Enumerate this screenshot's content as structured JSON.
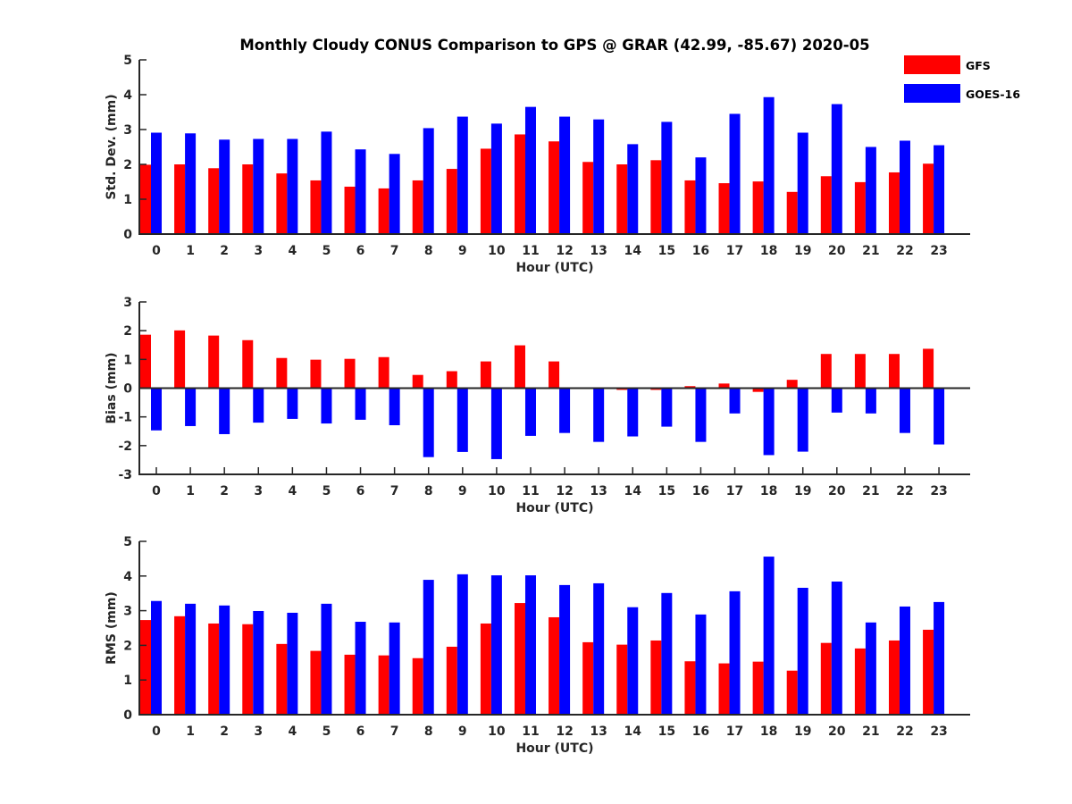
{
  "chart_data": {
    "title": "Monthly Cloudy CONUS Comparison to GPS @ GRAR (42.99, -85.67) 2020-05",
    "legend": {
      "placement": "top-right",
      "entries": [
        {
          "name": "GFS",
          "color": "#ff0000"
        },
        {
          "name": "GOES-16",
          "color": "#0000ff"
        }
      ]
    },
    "panels": [
      {
        "type": "bar",
        "ylabel": "Std. Dev. (mm)",
        "xlabel": "Hour (UTC)",
        "ylim": [
          0,
          5
        ],
        "yticks": [
          "0",
          "1",
          "2",
          "3",
          "4",
          "5"
        ],
        "categories": [
          "0",
          "1",
          "2",
          "3",
          "4",
          "5",
          "6",
          "7",
          "8",
          "9",
          "10",
          "11",
          "12",
          "13",
          "14",
          "15",
          "16",
          "17",
          "18",
          "19",
          "20",
          "21",
          "22",
          "23"
        ],
        "series": [
          {
            "name": "GFS",
            "color": "#ff0000",
            "values": [
              1.99,
              2.0,
              1.89,
              2.0,
              1.74,
              1.54,
              1.36,
              1.31,
              1.54,
              1.87,
              2.45,
              2.86,
              2.66,
              2.07,
              2.0,
              2.12,
              1.54,
              1.46,
              1.51,
              1.21,
              1.66,
              1.49,
              1.77,
              2.02
            ]
          },
          {
            "name": "GOES-16",
            "color": "#0000ff",
            "values": [
              2.91,
              2.89,
              2.71,
              2.73,
              2.73,
              2.94,
              2.43,
              2.3,
              3.04,
              3.37,
              3.17,
              3.65,
              3.37,
              3.29,
              2.58,
              3.22,
              2.2,
              3.45,
              3.93,
              2.91,
              3.73,
              2.5,
              2.68,
              2.55
            ]
          }
        ]
      },
      {
        "type": "bar",
        "ylabel": "Bias (mm)",
        "xlabel": "Hour (UTC)",
        "ylim": [
          -3,
          3
        ],
        "yticks": [
          "-3",
          "-2",
          "-1",
          "0",
          "1",
          "2",
          "3"
        ],
        "categories": [
          "0",
          "1",
          "2",
          "3",
          "4",
          "5",
          "6",
          "7",
          "8",
          "9",
          "10",
          "11",
          "12",
          "13",
          "14",
          "15",
          "16",
          "17",
          "18",
          "19",
          "20",
          "21",
          "22",
          "23"
        ],
        "series": [
          {
            "name": "GFS",
            "color": "#ff0000",
            "values": [
              1.86,
              2.01,
              1.83,
              1.67,
              1.05,
              0.99,
              1.02,
              1.08,
              0.46,
              0.59,
              0.93,
              1.49,
              0.93,
              0.01,
              -0.06,
              -0.06,
              0.07,
              0.16,
              -0.13,
              0.29,
              1.19,
              1.19,
              1.19,
              1.37
            ]
          },
          {
            "name": "GOES-16",
            "color": "#0000ff",
            "values": [
              -1.47,
              -1.32,
              -1.6,
              -1.2,
              -1.07,
              -1.23,
              -1.1,
              -1.29,
              -2.4,
              -2.22,
              -2.47,
              -1.66,
              -1.56,
              -1.87,
              -1.68,
              -1.34,
              -1.87,
              -0.88,
              -2.33,
              -2.21,
              -0.85,
              -0.88,
              -1.56,
              -1.96
            ]
          }
        ]
      },
      {
        "type": "bar",
        "ylabel": "RMS (mm)",
        "xlabel": "Hour (UTC)",
        "ylim": [
          0,
          5
        ],
        "yticks": [
          "0",
          "1",
          "2",
          "3",
          "4",
          "5"
        ],
        "categories": [
          "0",
          "1",
          "2",
          "3",
          "4",
          "5",
          "6",
          "7",
          "8",
          "9",
          "10",
          "11",
          "12",
          "13",
          "14",
          "15",
          "16",
          "17",
          "18",
          "19",
          "20",
          "21",
          "22",
          "23"
        ],
        "series": [
          {
            "name": "GFS",
            "color": "#ff0000",
            "values": [
              2.73,
              2.84,
              2.63,
              2.61,
              2.04,
              1.84,
              1.73,
              1.71,
              1.63,
              1.96,
              2.63,
              3.22,
              2.81,
              2.09,
              2.02,
              2.14,
              1.54,
              1.48,
              1.53,
              1.27,
              2.07,
              1.91,
              2.14,
              2.45
            ]
          },
          {
            "name": "GOES-16",
            "color": "#0000ff",
            "values": [
              3.28,
              3.2,
              3.15,
              2.99,
              2.94,
              3.2,
              2.68,
              2.66,
              3.89,
              4.05,
              4.02,
              4.02,
              3.74,
              3.79,
              3.1,
              3.51,
              2.89,
              3.56,
              4.56,
              3.66,
              3.84,
              2.66,
              3.12,
              3.25
            ]
          }
        ]
      }
    ]
  }
}
